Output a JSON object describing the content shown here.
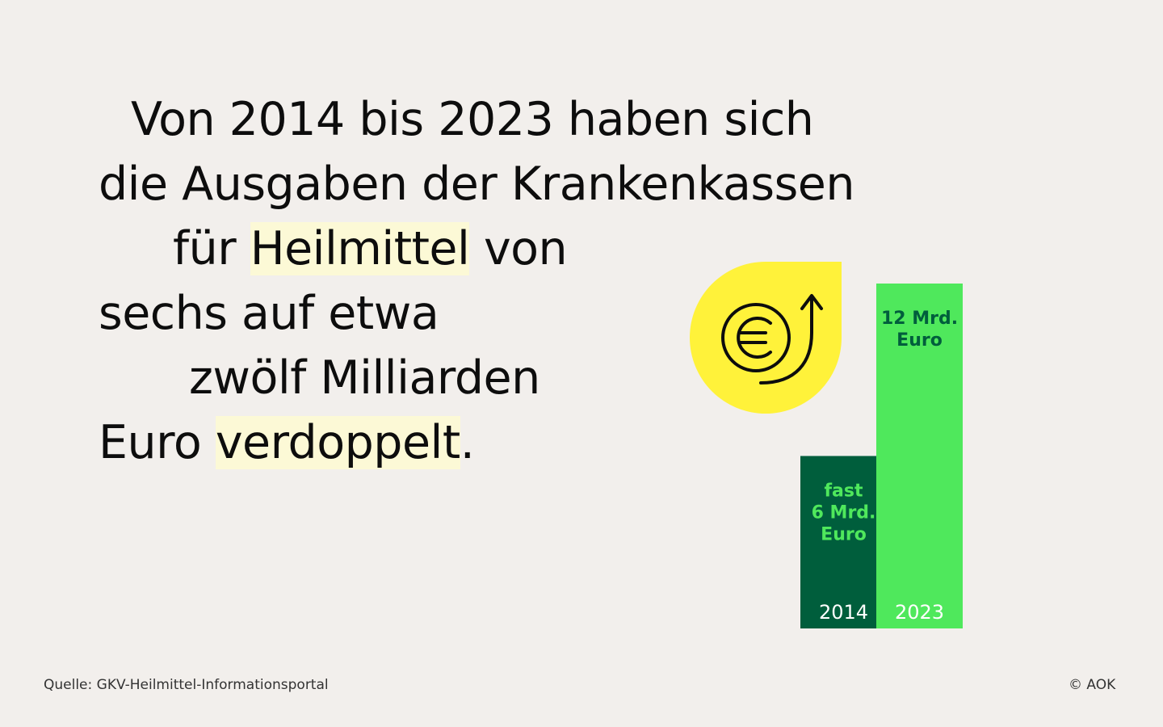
{
  "headline": {
    "line1": "Von 2014 bis 2023 haben sich",
    "line2": "die Ausgaben der Krankenkassen",
    "line3_pre": "für ",
    "line3_highlight": "Heilmittel",
    "line3_post": " von",
    "line4": "sechs auf etwa",
    "line5": "zwölf Milliarden",
    "line6_pre": "Euro ",
    "line6_highlight": "verdoppelt",
    "line6_post": "."
  },
  "icon": {
    "name": "euro-rising-arrow-icon",
    "badge_color": "#fff23a"
  },
  "chart_data": {
    "type": "bar",
    "categories": [
      "2014",
      "2023"
    ],
    "values": [
      6,
      12
    ],
    "unit": "Mrd. Euro",
    "data_labels": [
      [
        "fast",
        "6 Mrd.",
        "Euro"
      ],
      [
        "12 Mrd.",
        "Euro"
      ]
    ],
    "colors": [
      "#005e3c",
      "#4fe85c"
    ],
    "label_colors": [
      "#4fe85c",
      "#005e3c"
    ],
    "year_label_colors": [
      "#ffffff",
      "#ffffff"
    ],
    "ylim": [
      0,
      12
    ],
    "grid": false
  },
  "footer": {
    "source": "Quelle: GKV-Heilmittel-Informationsportal",
    "copyright": "© AOK"
  }
}
